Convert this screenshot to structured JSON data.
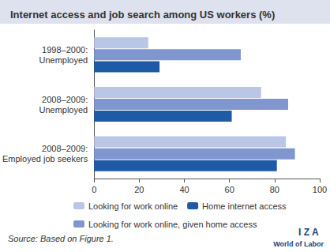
{
  "chart_data": {
    "type": "bar",
    "title": "Internet access and job search among US workers (%)",
    "orientation": "horizontal",
    "categories": [
      "1998–2000: Unemployed",
      "2008–2009: Unemployed",
      "2008–2009: Employed job seekers"
    ],
    "series": [
      {
        "name": "Looking for work online",
        "color": "#b9c6e6",
        "values": [
          24,
          74,
          85
        ]
      },
      {
        "name": "Looking for work online, given home access",
        "color": "#7f96cf",
        "values": [
          65,
          86,
          89
        ]
      },
      {
        "name": "Home internet access",
        "color": "#1f5aa6",
        "values": [
          29,
          61,
          81
        ]
      }
    ],
    "legend": "bottom",
    "xlim": [
      0,
      100
    ],
    "xticks": [
      0,
      20,
      40,
      60,
      80,
      100
    ],
    "grid": false,
    "annotations": [
      "Source: Based on Figure 1.",
      "I Z A",
      "World of Labor"
    ]
  }
}
